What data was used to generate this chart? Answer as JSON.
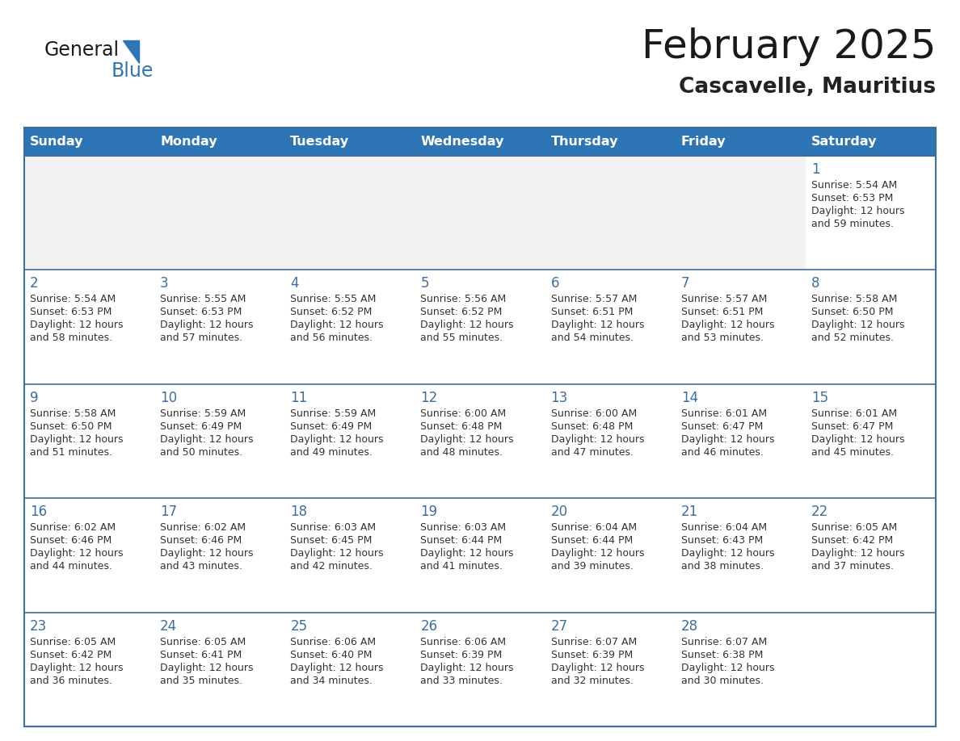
{
  "title": "February 2025",
  "subtitle": "Cascavelle, Mauritius",
  "header_bg": "#2E75B6",
  "header_text_color": "#FFFFFF",
  "cell_bg_white": "#FFFFFF",
  "cell_bg_gray": "#F2F2F2",
  "border_color": "#3D6EA0",
  "day_names": [
    "Sunday",
    "Monday",
    "Tuesday",
    "Wednesday",
    "Thursday",
    "Friday",
    "Saturday"
  ],
  "title_color": "#1a1a1a",
  "subtitle_color": "#222222",
  "day_number_color": "#3D6EA0",
  "cell_text_color": "#333333",
  "logo_general_color": "#1a1a1a",
  "logo_blue_color": "#2E75B6",
  "logo_triangle_color": "#2E75B6",
  "calendar": [
    [
      {
        "day": null
      },
      {
        "day": null
      },
      {
        "day": null
      },
      {
        "day": null
      },
      {
        "day": null
      },
      {
        "day": null
      },
      {
        "day": 1,
        "sunrise": "5:54 AM",
        "sunset": "6:53 PM",
        "daylight": "12 hours",
        "daylight2": "and 59 minutes."
      }
    ],
    [
      {
        "day": 2,
        "sunrise": "5:54 AM",
        "sunset": "6:53 PM",
        "daylight": "12 hours",
        "daylight2": "and 58 minutes."
      },
      {
        "day": 3,
        "sunrise": "5:55 AM",
        "sunset": "6:53 PM",
        "daylight": "12 hours",
        "daylight2": "and 57 minutes."
      },
      {
        "day": 4,
        "sunrise": "5:55 AM",
        "sunset": "6:52 PM",
        "daylight": "12 hours",
        "daylight2": "and 56 minutes."
      },
      {
        "day": 5,
        "sunrise": "5:56 AM",
        "sunset": "6:52 PM",
        "daylight": "12 hours",
        "daylight2": "and 55 minutes."
      },
      {
        "day": 6,
        "sunrise": "5:57 AM",
        "sunset": "6:51 PM",
        "daylight": "12 hours",
        "daylight2": "and 54 minutes."
      },
      {
        "day": 7,
        "sunrise": "5:57 AM",
        "sunset": "6:51 PM",
        "daylight": "12 hours",
        "daylight2": "and 53 minutes."
      },
      {
        "day": 8,
        "sunrise": "5:58 AM",
        "sunset": "6:50 PM",
        "daylight": "12 hours",
        "daylight2": "and 52 minutes."
      }
    ],
    [
      {
        "day": 9,
        "sunrise": "5:58 AM",
        "sunset": "6:50 PM",
        "daylight": "12 hours",
        "daylight2": "and 51 minutes."
      },
      {
        "day": 10,
        "sunrise": "5:59 AM",
        "sunset": "6:49 PM",
        "daylight": "12 hours",
        "daylight2": "and 50 minutes."
      },
      {
        "day": 11,
        "sunrise": "5:59 AM",
        "sunset": "6:49 PM",
        "daylight": "12 hours",
        "daylight2": "and 49 minutes."
      },
      {
        "day": 12,
        "sunrise": "6:00 AM",
        "sunset": "6:48 PM",
        "daylight": "12 hours",
        "daylight2": "and 48 minutes."
      },
      {
        "day": 13,
        "sunrise": "6:00 AM",
        "sunset": "6:48 PM",
        "daylight": "12 hours",
        "daylight2": "and 47 minutes."
      },
      {
        "day": 14,
        "sunrise": "6:01 AM",
        "sunset": "6:47 PM",
        "daylight": "12 hours",
        "daylight2": "and 46 minutes."
      },
      {
        "day": 15,
        "sunrise": "6:01 AM",
        "sunset": "6:47 PM",
        "daylight": "12 hours",
        "daylight2": "and 45 minutes."
      }
    ],
    [
      {
        "day": 16,
        "sunrise": "6:02 AM",
        "sunset": "6:46 PM",
        "daylight": "12 hours",
        "daylight2": "and 44 minutes."
      },
      {
        "day": 17,
        "sunrise": "6:02 AM",
        "sunset": "6:46 PM",
        "daylight": "12 hours",
        "daylight2": "and 43 minutes."
      },
      {
        "day": 18,
        "sunrise": "6:03 AM",
        "sunset": "6:45 PM",
        "daylight": "12 hours",
        "daylight2": "and 42 minutes."
      },
      {
        "day": 19,
        "sunrise": "6:03 AM",
        "sunset": "6:44 PM",
        "daylight": "12 hours",
        "daylight2": "and 41 minutes."
      },
      {
        "day": 20,
        "sunrise": "6:04 AM",
        "sunset": "6:44 PM",
        "daylight": "12 hours",
        "daylight2": "and 39 minutes."
      },
      {
        "day": 21,
        "sunrise": "6:04 AM",
        "sunset": "6:43 PM",
        "daylight": "12 hours",
        "daylight2": "and 38 minutes."
      },
      {
        "day": 22,
        "sunrise": "6:05 AM",
        "sunset": "6:42 PM",
        "daylight": "12 hours",
        "daylight2": "and 37 minutes."
      }
    ],
    [
      {
        "day": 23,
        "sunrise": "6:05 AM",
        "sunset": "6:42 PM",
        "daylight": "12 hours",
        "daylight2": "and 36 minutes."
      },
      {
        "day": 24,
        "sunrise": "6:05 AM",
        "sunset": "6:41 PM",
        "daylight": "12 hours",
        "daylight2": "and 35 minutes."
      },
      {
        "day": 25,
        "sunrise": "6:06 AM",
        "sunset": "6:40 PM",
        "daylight": "12 hours",
        "daylight2": "and 34 minutes."
      },
      {
        "day": 26,
        "sunrise": "6:06 AM",
        "sunset": "6:39 PM",
        "daylight": "12 hours",
        "daylight2": "and 33 minutes."
      },
      {
        "day": 27,
        "sunrise": "6:07 AM",
        "sunset": "6:39 PM",
        "daylight": "12 hours",
        "daylight2": "and 32 minutes."
      },
      {
        "day": 28,
        "sunrise": "6:07 AM",
        "sunset": "6:38 PM",
        "daylight": "12 hours",
        "daylight2": "and 30 minutes."
      },
      {
        "day": null
      }
    ]
  ]
}
